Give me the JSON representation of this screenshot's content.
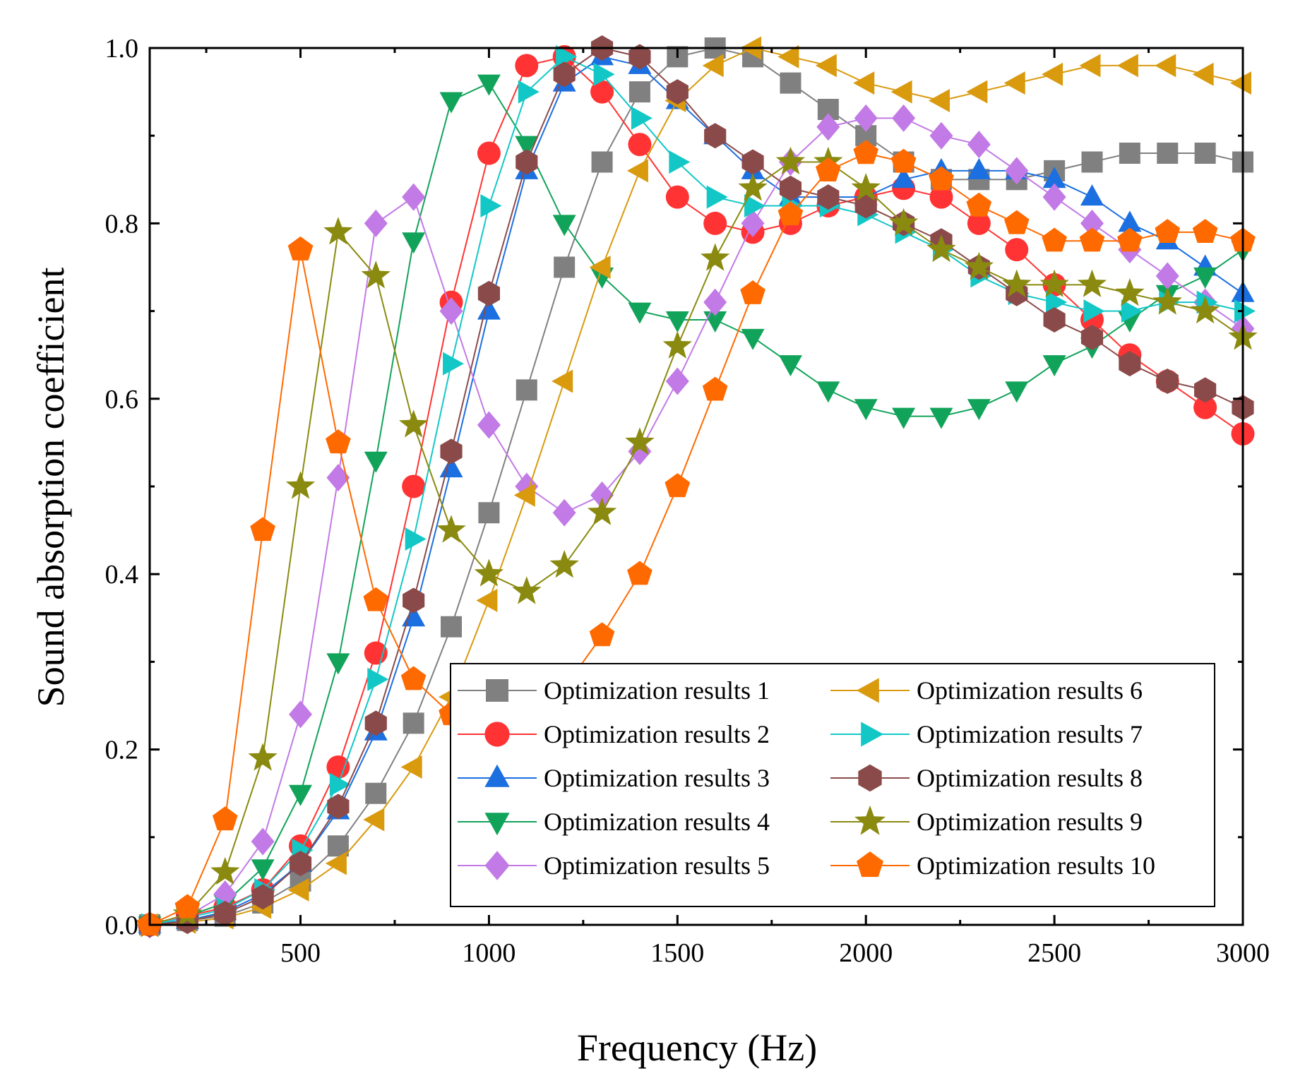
{
  "chart_data": {
    "type": "line",
    "title": "",
    "xlabel": "Frequency (Hz)",
    "ylabel": "Sound absorption coefficient",
    "xlim": [
      100,
      3000
    ],
    "ylim": [
      0,
      1.0
    ],
    "x_ticks": [
      500,
      1000,
      1500,
      2000,
      2500,
      3000
    ],
    "x_tick_labels": [
      "500",
      "1000",
      "1500",
      "2000",
      "2500",
      "3000"
    ],
    "y_ticks": [
      0,
      0.2,
      0.4,
      0.6,
      0.8,
      1.0
    ],
    "y_tick_labels": [
      "0.0",
      "0.2",
      "0.4",
      "0.6",
      "0.8",
      "1.0"
    ],
    "grid": false,
    "legend_position": "bottom-right",
    "x": [
      100,
      200,
      300,
      400,
      500,
      600,
      700,
      800,
      900,
      1000,
      1100,
      1200,
      1300,
      1400,
      1500,
      1600,
      1700,
      1800,
      1900,
      2000,
      2100,
      2200,
      2300,
      2400,
      2500,
      2600,
      2700,
      2800,
      2900,
      3000
    ],
    "series": [
      {
        "name": "Optimization results 1",
        "color": "#808080",
        "marker": "square",
        "values": [
          0.0,
          0.005,
          0.01,
          0.025,
          0.05,
          0.09,
          0.15,
          0.23,
          0.34,
          0.47,
          0.61,
          0.75,
          0.87,
          0.95,
          0.99,
          1.0,
          0.99,
          0.96,
          0.93,
          0.9,
          0.87,
          0.85,
          0.85,
          0.85,
          0.86,
          0.87,
          0.88,
          0.88,
          0.88,
          0.87
        ]
      },
      {
        "name": "Optimization results 2",
        "color": "#ff3333",
        "marker": "circle",
        "values": [
          0.0,
          0.01,
          0.02,
          0.04,
          0.09,
          0.18,
          0.31,
          0.5,
          0.71,
          0.88,
          0.98,
          0.99,
          0.95,
          0.89,
          0.83,
          0.8,
          0.79,
          0.8,
          0.82,
          0.83,
          0.84,
          0.83,
          0.8,
          0.77,
          0.73,
          0.69,
          0.65,
          0.62,
          0.59,
          0.56
        ]
      },
      {
        "name": "Optimization results 3",
        "color": "#1b6fe0",
        "marker": "triangle-up",
        "values": [
          0.0,
          0.005,
          0.015,
          0.035,
          0.07,
          0.13,
          0.22,
          0.35,
          0.52,
          0.7,
          0.86,
          0.96,
          0.99,
          0.98,
          0.94,
          0.9,
          0.86,
          0.83,
          0.83,
          0.83,
          0.85,
          0.86,
          0.86,
          0.86,
          0.85,
          0.83,
          0.8,
          0.78,
          0.75,
          0.72
        ]
      },
      {
        "name": "Optimization results 4",
        "color": "#12a35a",
        "marker": "triangle-down",
        "values": [
          0.0,
          0.01,
          0.025,
          0.065,
          0.15,
          0.3,
          0.53,
          0.78,
          0.94,
          0.96,
          0.89,
          0.8,
          0.74,
          0.7,
          0.69,
          0.69,
          0.67,
          0.64,
          0.61,
          0.59,
          0.58,
          0.58,
          0.59,
          0.61,
          0.64,
          0.66,
          0.69,
          0.72,
          0.74,
          0.77
        ]
      },
      {
        "name": "Optimization results 5",
        "color": "#c27ae6",
        "marker": "diamond",
        "values": [
          0.0,
          0.01,
          0.035,
          0.095,
          0.24,
          0.51,
          0.8,
          0.83,
          0.7,
          0.57,
          0.5,
          0.47,
          0.49,
          0.54,
          0.62,
          0.71,
          0.8,
          0.87,
          0.91,
          0.92,
          0.92,
          0.9,
          0.89,
          0.86,
          0.83,
          0.8,
          0.77,
          0.74,
          0.71,
          0.68
        ]
      },
      {
        "name": "Optimization results 6",
        "color": "#d99a0e",
        "marker": "triangle-left",
        "values": [
          0.0,
          0.003,
          0.008,
          0.02,
          0.04,
          0.07,
          0.12,
          0.18,
          0.26,
          0.37,
          0.49,
          0.62,
          0.75,
          0.86,
          0.94,
          0.98,
          1.0,
          0.99,
          0.98,
          0.96,
          0.95,
          0.94,
          0.95,
          0.96,
          0.97,
          0.98,
          0.98,
          0.98,
          0.97,
          0.96
        ]
      },
      {
        "name": "Optimization results 7",
        "color": "#14c7c7",
        "marker": "triangle-right",
        "values": [
          0.0,
          0.008,
          0.018,
          0.04,
          0.085,
          0.16,
          0.28,
          0.44,
          0.64,
          0.82,
          0.95,
          0.99,
          0.97,
          0.92,
          0.87,
          0.83,
          0.82,
          0.82,
          0.82,
          0.81,
          0.79,
          0.77,
          0.74,
          0.72,
          0.71,
          0.7,
          0.7,
          0.71,
          0.71,
          0.7
        ]
      },
      {
        "name": "Optimization results 8",
        "color": "#8b4a4a",
        "marker": "hexagon",
        "values": [
          0.0,
          0.004,
          0.013,
          0.032,
          0.07,
          0.135,
          0.23,
          0.37,
          0.54,
          0.72,
          0.87,
          0.97,
          1.0,
          0.99,
          0.95,
          0.9,
          0.87,
          0.84,
          0.83,
          0.82,
          0.8,
          0.78,
          0.75,
          0.72,
          0.69,
          0.67,
          0.64,
          0.62,
          0.61,
          0.59
        ]
      },
      {
        "name": "Optimization results 9",
        "color": "#8a8a10",
        "marker": "star",
        "values": [
          0.0,
          0.012,
          0.06,
          0.19,
          0.5,
          0.79,
          0.74,
          0.57,
          0.45,
          0.4,
          0.38,
          0.41,
          0.47,
          0.55,
          0.66,
          0.76,
          0.84,
          0.87,
          0.87,
          0.84,
          0.8,
          0.77,
          0.75,
          0.73,
          0.73,
          0.73,
          0.72,
          0.71,
          0.7,
          0.67
        ]
      },
      {
        "name": "Optimization results 10",
        "color": "#ff6a00",
        "marker": "pentagon",
        "values": [
          0.0,
          0.02,
          0.12,
          0.45,
          0.77,
          0.55,
          0.37,
          0.28,
          0.24,
          0.23,
          0.24,
          0.27,
          0.33,
          0.4,
          0.5,
          0.61,
          0.72,
          0.81,
          0.86,
          0.88,
          0.87,
          0.85,
          0.82,
          0.8,
          0.78,
          0.78,
          0.78,
          0.79,
          0.79,
          0.78
        ]
      }
    ]
  }
}
